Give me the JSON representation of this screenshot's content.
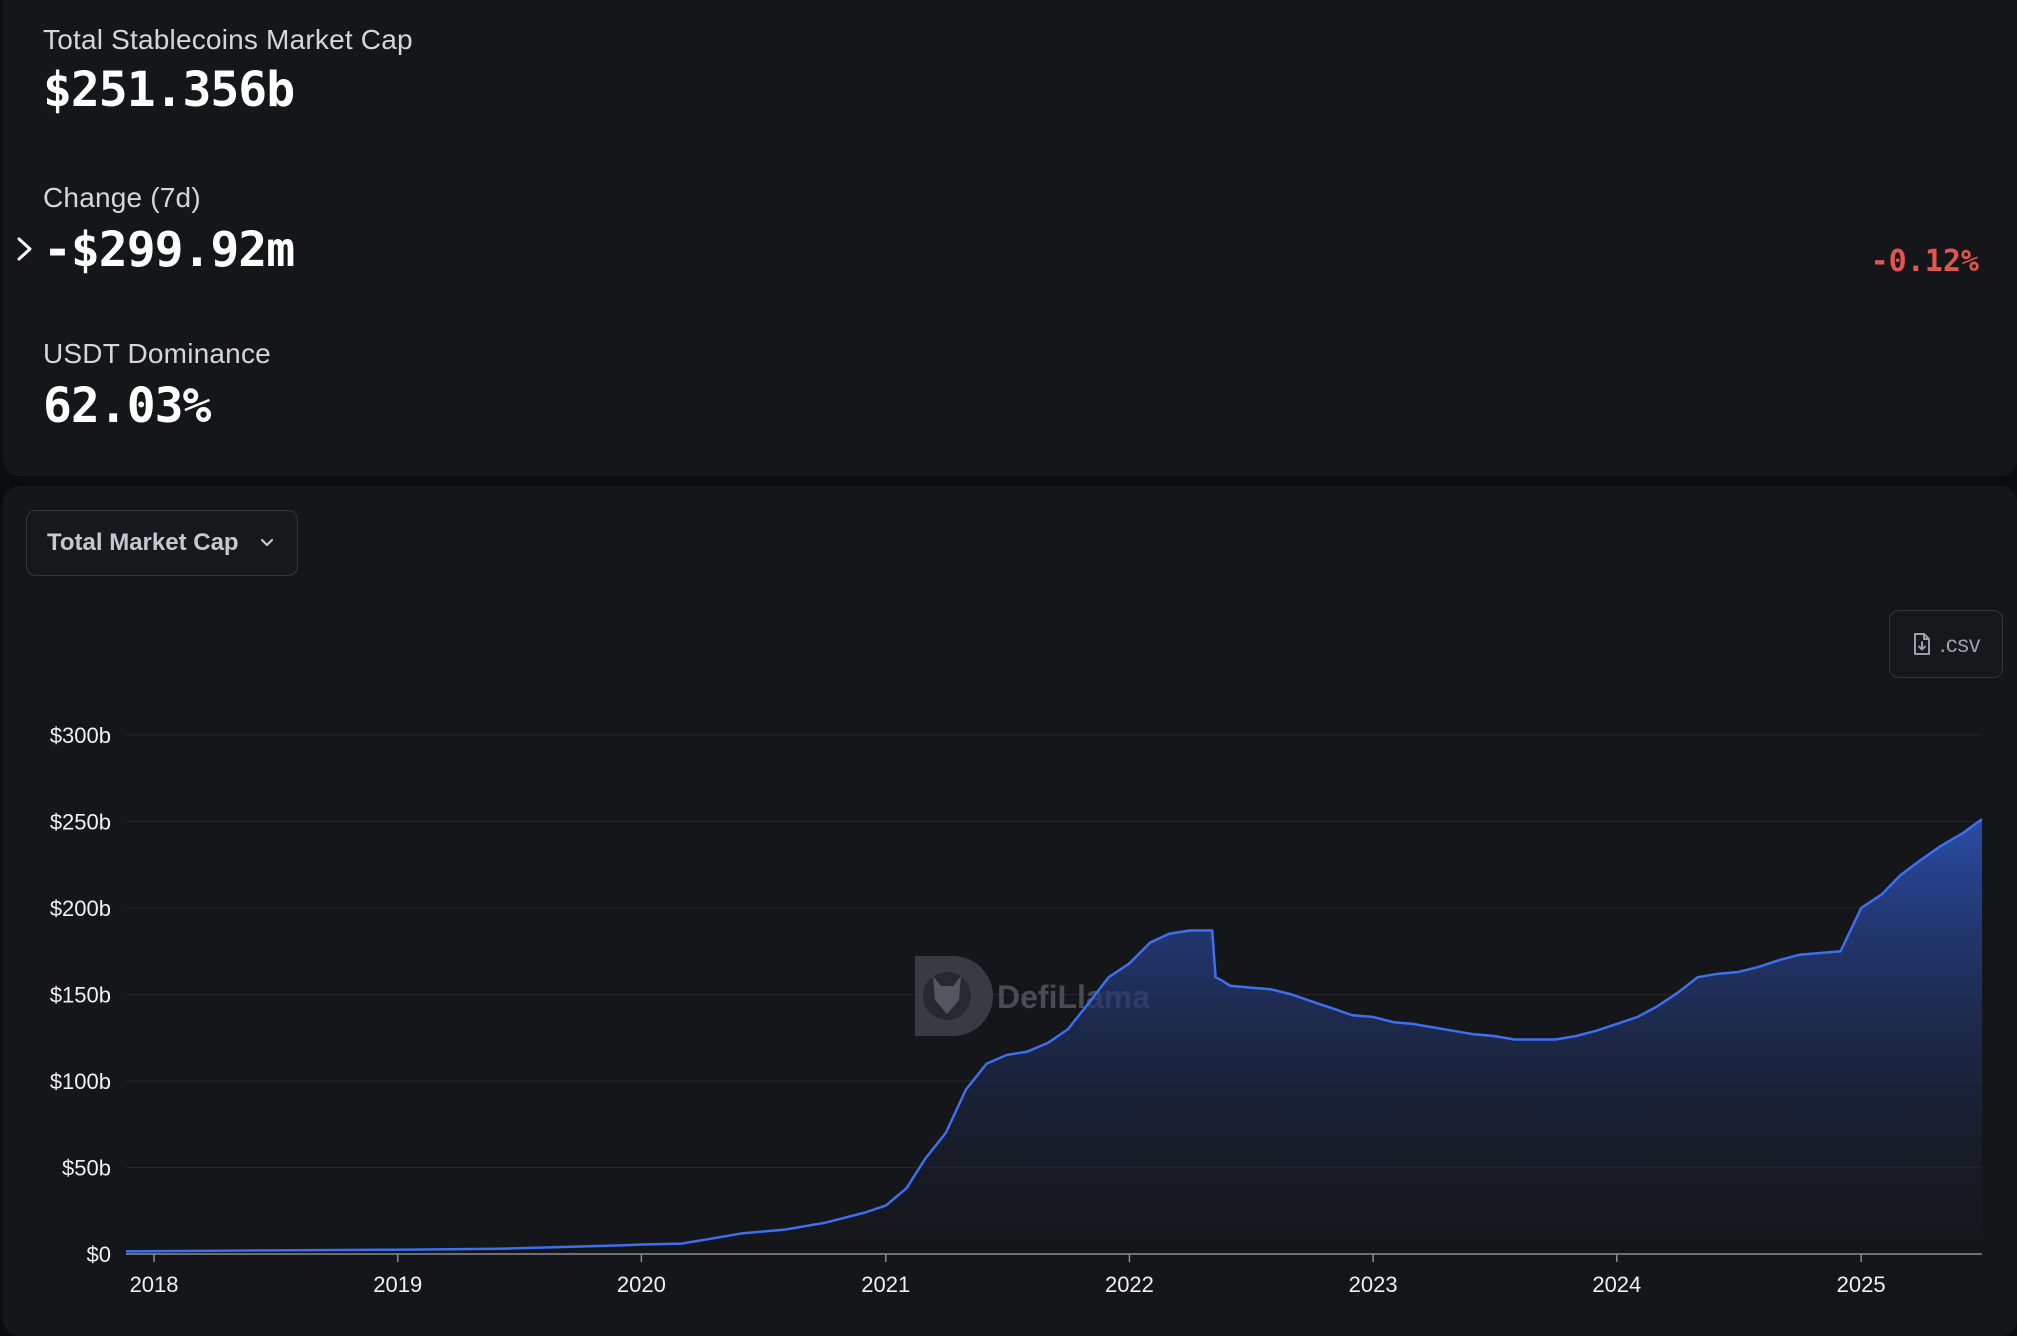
{
  "stats": {
    "total_label": "Total Stablecoins Market Cap",
    "total_value": "$251.356b",
    "change_label": "Change (7d)",
    "change_value": "-$299.92m",
    "change_percent": "-0.12%",
    "dominance_label": "USDT Dominance",
    "dominance_value": "62.03%"
  },
  "controls": {
    "metric_select_value": "Total Market Cap",
    "csv_label": ".csv"
  },
  "watermark": "DefiLlama",
  "colors": {
    "background": "#151619",
    "line": "#3d6ff0",
    "negative": "#e2544f"
  },
  "chart_data": {
    "type": "area",
    "title": "",
    "xlabel": "",
    "ylabel": "",
    "xlim": [
      "2017-11-20",
      "2025-07-01"
    ],
    "ylim": [
      0,
      300
    ],
    "y_unit": "billion USD",
    "grid": "horizontal",
    "y_ticks": [
      {
        "value": 0,
        "label": "$0"
      },
      {
        "value": 50,
        "label": "$50b"
      },
      {
        "value": 100,
        "label": "$100b"
      },
      {
        "value": 150,
        "label": "$150b"
      },
      {
        "value": 200,
        "label": "$200b"
      },
      {
        "value": 250,
        "label": "$250b"
      },
      {
        "value": 300,
        "label": "$300b"
      }
    ],
    "x_ticks": [
      {
        "value": "2018-01-01",
        "label": "2018"
      },
      {
        "value": "2019-01-01",
        "label": "2019"
      },
      {
        "value": "2020-01-01",
        "label": "2020"
      },
      {
        "value": "2021-01-01",
        "label": "2021"
      },
      {
        "value": "2022-01-01",
        "label": "2022"
      },
      {
        "value": "2023-01-01",
        "label": "2023"
      },
      {
        "value": "2024-01-01",
        "label": "2024"
      },
      {
        "value": "2025-01-01",
        "label": "2025"
      }
    ],
    "series": [
      {
        "x": [
          "2017-11-20",
          "2018-06-01",
          "2019-01-01",
          "2019-06-01",
          "2019-12-01",
          "2020-01-01",
          "2020-03-01",
          "2020-04-01",
          "2020-06-01",
          "2020-08-01",
          "2020-10-01",
          "2020-12-01",
          "2021-01-01",
          "2021-02-01",
          "2021-03-01",
          "2021-04-01",
          "2021-05-01",
          "2021-06-01",
          "2021-07-01",
          "2021-08-01",
          "2021-09-01",
          "2021-10-01",
          "2021-11-01",
          "2021-12-01",
          "2022-01-01",
          "2022-02-01",
          "2022-03-01",
          "2022-04-01",
          "2022-05-05",
          "2022-05-10",
          "2022-05-20",
          "2022-06-01",
          "2022-07-01",
          "2022-08-01",
          "2022-09-01",
          "2022-10-01",
          "2022-11-01",
          "2022-12-01",
          "2023-01-01",
          "2023-02-01",
          "2023-03-01",
          "2023-04-01",
          "2023-05-01",
          "2023-06-01",
          "2023-07-01",
          "2023-08-01",
          "2023-09-01",
          "2023-10-01",
          "2023-11-01",
          "2023-12-01",
          "2024-01-01",
          "2024-02-01",
          "2024-03-01",
          "2024-04-01",
          "2024-05-01",
          "2024-06-01",
          "2024-07-01",
          "2024-08-01",
          "2024-09-01",
          "2024-10-01",
          "2024-11-01",
          "2024-12-01",
          "2025-01-01",
          "2025-02-01",
          "2025-03-01",
          "2025-04-01",
          "2025-05-01",
          "2025-06-01",
          "2025-07-01"
        ],
        "y": [
          1.5,
          2,
          2.5,
          3,
          5,
          5.5,
          6,
          8,
          12,
          14,
          18,
          24,
          28,
          38,
          55,
          70,
          95,
          110,
          115,
          117,
          122,
          130,
          145,
          160,
          168,
          180,
          185,
          187,
          187,
          160,
          158,
          155,
          154,
          153,
          150,
          146,
          142,
          138,
          137,
          134,
          133,
          131,
          129,
          127,
          126,
          124,
          124,
          124,
          126,
          129,
          133,
          137,
          143,
          151,
          160,
          162,
          163,
          166,
          170,
          173,
          174,
          175,
          200,
          208,
          219,
          228,
          236,
          243,
          251.4
        ]
      }
    ]
  }
}
